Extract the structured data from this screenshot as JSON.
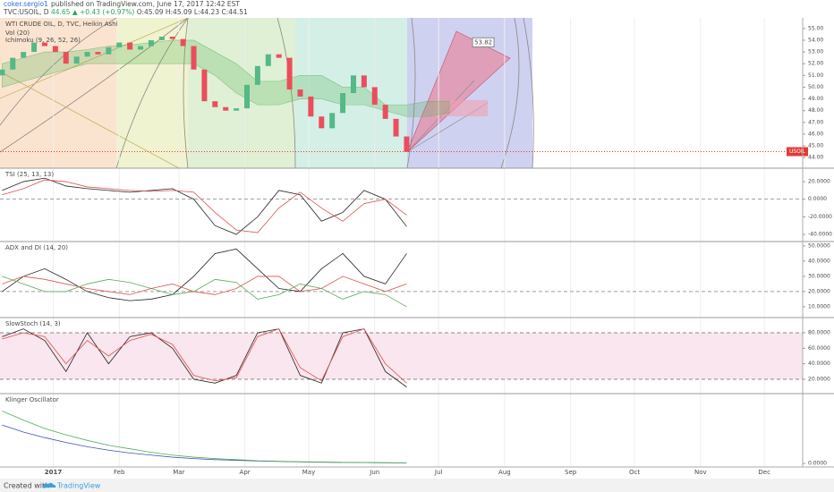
{
  "header": {
    "author": "coker.sergio1",
    "published": "published on TradingView.com, June 17, 2017 12:42 EST",
    "symbol": "TVC:USOIL, D",
    "last": "44.65",
    "change": "▲ +0.43 (+0.97%)",
    "ohlc": [
      "O:45.09",
      "H:45.09",
      "L:44.23",
      "C:44.51"
    ]
  },
  "footer": {
    "created": "Created with",
    "brand": "TradingView"
  },
  "x_axis": {
    "xlim": [
      -25,
      352
    ],
    "xticks": [
      {
        "value": 0,
        "label": "2017"
      },
      {
        "value": 31,
        "label": "Feb"
      },
      {
        "value": 59,
        "label": "Mar"
      },
      {
        "value": 90,
        "label": "Apr"
      },
      {
        "value": 120,
        "label": "May"
      },
      {
        "value": 151,
        "label": "Jun"
      },
      {
        "value": 181,
        "label": "Jul"
      },
      {
        "value": 212,
        "label": "Aug"
      },
      {
        "value": 243,
        "label": "Sep"
      },
      {
        "value": 273,
        "label": "Oct"
      },
      {
        "value": 304,
        "label": "Nov"
      },
      {
        "value": 334,
        "label": "Dec"
      }
    ]
  },
  "chart_data": [
    {
      "type": "candlestick",
      "title": "WTI CRUDE OIL, D, TVC, Heikin Ashi",
      "studies": [
        "Vol (20)",
        "Ichimoku (9, 26, 52, 26)"
      ],
      "ylim": [
        43.1,
        55.9
      ],
      "yticks": [
        {
          "value": 44,
          "label": "44.00"
        },
        {
          "value": 45,
          "label": "45.00"
        },
        {
          "value": 46,
          "label": "46.00"
        },
        {
          "value": 47,
          "label": "47.00"
        },
        {
          "value": 48,
          "label": "48.00"
        },
        {
          "value": 49,
          "label": "49.00"
        },
        {
          "value": 50,
          "label": "50.00"
        },
        {
          "value": 51,
          "label": "51.00"
        },
        {
          "value": 52,
          "label": "52.00"
        },
        {
          "value": 53,
          "label": "53.00"
        },
        {
          "value": 54,
          "label": "54.00"
        },
        {
          "value": 55,
          "label": "55.00"
        }
      ],
      "x": [
        -24,
        -19,
        -14,
        -9,
        -4,
        1,
        6,
        11,
        16,
        21,
        26,
        31,
        36,
        41,
        46,
        51,
        56,
        61,
        66,
        71,
        76,
        81,
        86,
        91,
        96,
        101,
        106,
        111,
        116,
        121,
        126,
        131,
        136,
        141,
        146,
        151,
        156,
        161,
        166
      ],
      "open": [
        51.0,
        51.5,
        52.5,
        53.0,
        53.8,
        53.5,
        53.0,
        52.0,
        52.6,
        53.0,
        52.8,
        53.4,
        53.8,
        53.2,
        53.5,
        54.0,
        54.3,
        54.1,
        53.5,
        51.5,
        48.8,
        48.3,
        48.0,
        48.2,
        50.2,
        51.8,
        52.8,
        52.5,
        49.8,
        49.2,
        47.5,
        46.5,
        47.8,
        49.5,
        51.0,
        50.0,
        48.5,
        47.3,
        45.8
      ],
      "close": [
        51.5,
        52.5,
        53.0,
        53.8,
        53.5,
        53.0,
        52.0,
        52.6,
        53.0,
        52.8,
        53.4,
        53.8,
        53.2,
        53.5,
        54.0,
        54.3,
        54.1,
        53.5,
        51.5,
        48.8,
        48.3,
        48.0,
        48.2,
        50.2,
        51.8,
        52.8,
        52.5,
        49.8,
        49.2,
        47.5,
        46.5,
        47.8,
        49.5,
        51.0,
        50.0,
        48.5,
        47.3,
        45.8,
        44.5
      ],
      "up_color": "#53b987",
      "down_color": "#eb4d5c",
      "cloud": {
        "x": [
          -24,
          -14,
          -4,
          6,
          16,
          26,
          36,
          46,
          56,
          66,
          76,
          86,
          96,
          106,
          116,
          126,
          136,
          146,
          156,
          166,
          176,
          186
        ],
        "upper": [
          52,
          52.5,
          53,
          53,
          53.2,
          53.5,
          53.6,
          53.8,
          54,
          54,
          53,
          52,
          50.5,
          50.5,
          51,
          51,
          50,
          50,
          48.5,
          48.5,
          48.8,
          48.8
        ],
        "lower": [
          50,
          50.5,
          51,
          51.5,
          52,
          52,
          52,
          52,
          52,
          52,
          51,
          49.5,
          48.5,
          48.5,
          49,
          49,
          48.5,
          48.5,
          48,
          47.5,
          47.5,
          47.8
        ],
        "color": "#4caf50"
      },
      "price_line": {
        "value": 44.51,
        "label": "USOIL",
        "color": "#e53935"
      },
      "annotation": {
        "value": 53.82,
        "label": "53.82",
        "x": 202
      }
    },
    {
      "type": "line",
      "title": "TSI (25, 13, 13)",
      "ylim": [
        -48.1,
        35.3
      ],
      "yticks": [
        {
          "value": 20,
          "label": "20.0000"
        },
        {
          "value": 0,
          "label": "0.0000"
        },
        {
          "value": -20,
          "label": "-20.0000"
        },
        {
          "value": -40,
          "label": "-40.0000"
        }
      ],
      "dashed_levels": [
        0
      ],
      "x": [
        -24,
        -14,
        -4,
        6,
        16,
        26,
        36,
        46,
        56,
        66,
        76,
        86,
        96,
        106,
        116,
        126,
        136,
        146,
        156,
        166
      ],
      "series": [
        {
          "color": "#222222",
          "values": [
            10,
            20,
            24,
            15,
            12,
            10,
            8,
            10,
            12,
            0,
            -30,
            -40,
            -20,
            10,
            5,
            -25,
            -15,
            10,
            0,
            -31
          ]
        },
        {
          "color": "#e05050",
          "values": [
            5,
            12,
            22,
            20,
            14,
            12,
            10,
            9,
            10,
            8,
            -15,
            -35,
            -38,
            -10,
            8,
            -10,
            -25,
            -5,
            0,
            -18
          ]
        }
      ]
    },
    {
      "type": "line",
      "title": "ADX and DI (14, 20)",
      "ylim": [
        2.9,
        52.9
      ],
      "yticks": [
        {
          "value": 50,
          "label": "50.0000"
        },
        {
          "value": 40,
          "label": "40.0000"
        },
        {
          "value": 30,
          "label": "30.0000"
        },
        {
          "value": 20,
          "label": "20.0000"
        },
        {
          "value": 10,
          "label": "10.0000"
        }
      ],
      "dashed_levels": [
        20
      ],
      "x": [
        -24,
        -14,
        -4,
        6,
        16,
        26,
        36,
        46,
        56,
        66,
        76,
        86,
        96,
        106,
        116,
        126,
        136,
        146,
        156,
        166
      ],
      "series": [
        {
          "color": "#222222",
          "values": [
            20,
            30,
            35,
            28,
            20,
            16,
            14,
            15,
            18,
            30,
            45,
            48,
            35,
            22,
            20,
            35,
            45,
            30,
            25,
            45
          ]
        },
        {
          "color": "#e05050",
          "values": [
            25,
            30,
            28,
            25,
            22,
            20,
            18,
            22,
            25,
            20,
            18,
            22,
            30,
            30,
            20,
            22,
            30,
            25,
            20,
            25
          ]
        },
        {
          "color": "#5aaa5a",
          "values": [
            30,
            25,
            20,
            20,
            25,
            28,
            26,
            22,
            18,
            20,
            28,
            26,
            15,
            18,
            25,
            22,
            15,
            20,
            18,
            10
          ]
        }
      ]
    },
    {
      "type": "line",
      "title": "SlowStoch (14, 3)",
      "ylim": [
        1.5,
        99.6
      ],
      "yticks": [
        {
          "value": 80,
          "label": "80.0000"
        },
        {
          "value": 60,
          "label": "60.0000"
        },
        {
          "value": 40,
          "label": "40.0000"
        },
        {
          "value": 20,
          "label": "20.0000"
        }
      ],
      "dashed_levels": [
        80,
        20
      ],
      "band_color": "#f9e6ee",
      "x": [
        -24,
        -14,
        -4,
        6,
        16,
        26,
        36,
        46,
        56,
        66,
        76,
        86,
        96,
        106,
        116,
        126,
        136,
        146,
        156,
        166
      ],
      "series": [
        {
          "color": "#222222",
          "values": [
            75,
            85,
            70,
            30,
            80,
            40,
            75,
            80,
            60,
            20,
            15,
            25,
            80,
            85,
            25,
            15,
            80,
            85,
            30,
            10
          ]
        },
        {
          "color": "#e05050",
          "values": [
            72,
            80,
            75,
            40,
            70,
            50,
            70,
            78,
            65,
            25,
            18,
            22,
            75,
            85,
            35,
            18,
            75,
            85,
            40,
            15
          ]
        }
      ]
    },
    {
      "type": "line",
      "title": "Klinger Oscillator",
      "ylim": [
        -0.05,
        1.0
      ],
      "yticks": [
        {
          "value": 0,
          "label": "0.0000"
        }
      ],
      "x": [
        -24,
        -14,
        -4,
        6,
        16,
        26,
        36,
        46,
        56,
        66,
        76,
        86,
        96,
        106,
        116,
        126,
        136,
        146,
        156,
        166
      ],
      "series": [
        {
          "color": "#3f51b5",
          "values": [
            0.55,
            0.45,
            0.37,
            0.3,
            0.24,
            0.19,
            0.15,
            0.12,
            0.09,
            0.07,
            0.055,
            0.045,
            0.035,
            0.028,
            0.022,
            0.018,
            0.015,
            0.012,
            0.01,
            0.008
          ]
        },
        {
          "color": "#4caf50",
          "values": [
            0.75,
            0.62,
            0.5,
            0.41,
            0.33,
            0.26,
            0.21,
            0.16,
            0.12,
            0.09,
            0.07,
            0.055,
            0.04,
            0.032,
            0.025,
            0.02,
            0.016,
            0.013,
            0.011,
            0.009
          ]
        }
      ]
    }
  ]
}
